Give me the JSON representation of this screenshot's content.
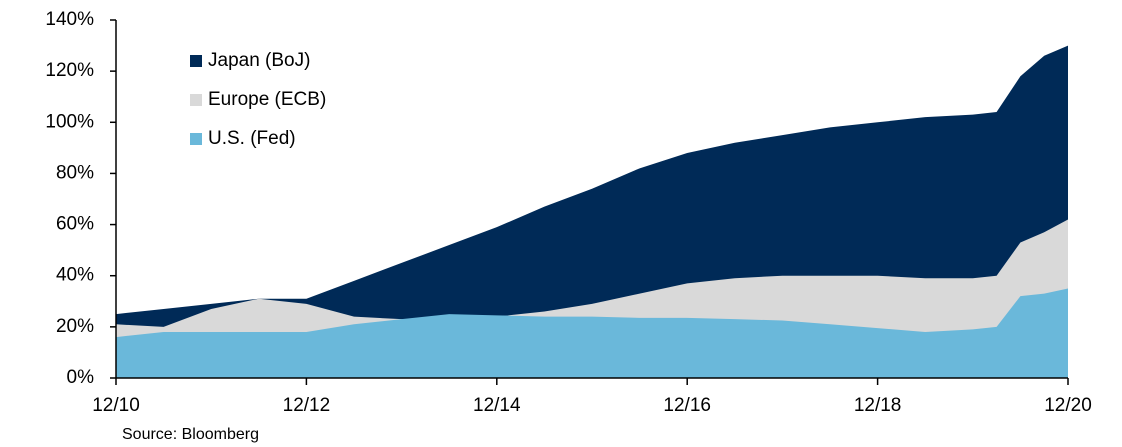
{
  "chart_data": {
    "type": "area",
    "source": "Source:  Bloomberg",
    "x": [
      2010.92,
      2011.42,
      2011.92,
      2012.42,
      2012.92,
      2013.42,
      2013.92,
      2014.42,
      2014.92,
      2015.42,
      2015.92,
      2016.42,
      2016.92,
      2017.42,
      2017.92,
      2018.42,
      2018.92,
      2019.42,
      2019.92,
      2020.17,
      2020.42,
      2020.67,
      2020.92
    ],
    "series": [
      {
        "name": "Japan (BoJ)",
        "color": "#002a57",
        "values": [
          25,
          27,
          29,
          31,
          31,
          38,
          45,
          52,
          59,
          67,
          74,
          82,
          88,
          92,
          95,
          98,
          100,
          102,
          103,
          104,
          118,
          126,
          130
        ]
      },
      {
        "name": "Europe (ECB)",
        "color": "#d9d9d9",
        "values": [
          21,
          20,
          27,
          31,
          29,
          24,
          23,
          23,
          24,
          26,
          29,
          33,
          37,
          39,
          40,
          40,
          40,
          39,
          39,
          40,
          53,
          57,
          62
        ]
      },
      {
        "name": "U.S. (Fed)",
        "color": "#6ab8da",
        "values": [
          16,
          18,
          18,
          18,
          18,
          21,
          23,
          25,
          24.5,
          24,
          24,
          23.5,
          23.5,
          23,
          22.5,
          21,
          19.5,
          18,
          19,
          20,
          32,
          33,
          35
        ]
      }
    ],
    "xlim": [
      2010.92,
      2020.92
    ],
    "xticks": [
      {
        "value": 2010.92,
        "label": "12/10"
      },
      {
        "value": 2012.92,
        "label": "12/12"
      },
      {
        "value": 2014.92,
        "label": "12/14"
      },
      {
        "value": 2016.92,
        "label": "12/16"
      },
      {
        "value": 2018.92,
        "label": "12/18"
      },
      {
        "value": 2020.92,
        "label": "12/20"
      }
    ],
    "ylim": [
      0,
      140
    ],
    "yticks": [
      {
        "value": 0,
        "label": "0%"
      },
      {
        "value": 20,
        "label": "20%"
      },
      {
        "value": 40,
        "label": "40%"
      },
      {
        "value": 60,
        "label": "60%"
      },
      {
        "value": 80,
        "label": "80%"
      },
      {
        "value": 100,
        "label": "100%"
      },
      {
        "value": 120,
        "label": "120%"
      },
      {
        "value": 140,
        "label": "140%"
      }
    ],
    "legend": "upper left",
    "overlap": true
  }
}
